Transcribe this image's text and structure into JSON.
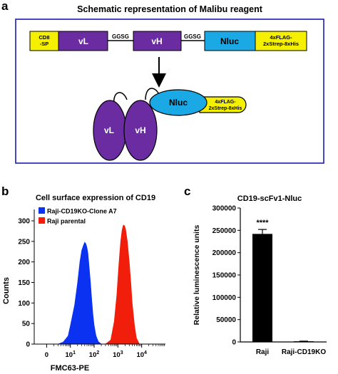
{
  "panel_a": {
    "letter": "a",
    "title": "Schematic representation of Malibu reagent",
    "construct": {
      "signal_label": "CD8\n-SP",
      "vl_label": "vL",
      "linker1": "GGSG",
      "vh_label": "vH",
      "linker2": "GGSG",
      "nluc_label": "Nluc",
      "tag_label": "4xFLAG-\n2xStrep-8xHis"
    },
    "protein": {
      "vl_label": "vL",
      "vh_label": "vH",
      "nluc_label": "Nluc",
      "tag_label": "4xFLAG-\n2xStrep-8xHis"
    },
    "colors": {
      "signal": "#f5f000",
      "domain": "#6a2ca0",
      "nluc": "#1ba9e6",
      "tag": "#f5f000",
      "border": "#1a1ab0"
    }
  },
  "panel_b": {
    "letter": "b",
    "chart_data": {
      "type": "area",
      "title": "Cell surface expression of CD19",
      "xlabel": "FMC63-PE",
      "ylabel": "Counts",
      "x_scale": "log",
      "xlim": [
        0.3,
        100000
      ],
      "ylim": [
        0,
        300
      ],
      "yticks": [
        "0",
        "50",
        "100",
        "150",
        "200",
        "250",
        "300"
      ],
      "xticks": [
        "0",
        "10^1",
        "10^2",
        "10^3",
        "10^4"
      ],
      "legend_position": "top-left",
      "series": [
        {
          "name": "Raji-CD19KO-Clone A7",
          "color": "#0a32f0",
          "x": [
            3,
            5,
            8,
            10,
            15,
            20,
            25,
            30,
            35,
            40,
            45,
            50,
            55,
            60,
            70,
            80,
            90,
            100,
            120,
            150,
            200
          ],
          "y": [
            0,
            5,
            20,
            45,
            95,
            150,
            200,
            228,
            240,
            248,
            244,
            235,
            220,
            195,
            150,
            105,
            70,
            45,
            20,
            6,
            0
          ]
        },
        {
          "name": "Raji parental",
          "color": "#f01e0a",
          "x": [
            300,
            500,
            700,
            900,
            1100,
            1300,
            1500,
            1700,
            1900,
            2100,
            2500,
            3000,
            3500,
            4000,
            5000,
            6000,
            8000
          ],
          "y": [
            0,
            10,
            55,
            120,
            195,
            250,
            278,
            290,
            288,
            280,
            250,
            200,
            150,
            100,
            45,
            15,
            0
          ]
        }
      ]
    }
  },
  "panel_c": {
    "letter": "c",
    "chart_data": {
      "type": "bar",
      "title": "CD19-scFv1-Nluc",
      "ylabel": "Relative luminescence units",
      "xlabel": "",
      "categories": [
        "Raji",
        "Raji-CD19KO"
      ],
      "values": [
        242000,
        1500
      ],
      "errors": [
        10000,
        300
      ],
      "ylim": [
        0,
        300000
      ],
      "yticks": [
        "0",
        "50000",
        "100000",
        "150000",
        "200000",
        "250000",
        "300000"
      ],
      "annotation": "****",
      "bar_color": "#000000"
    }
  }
}
